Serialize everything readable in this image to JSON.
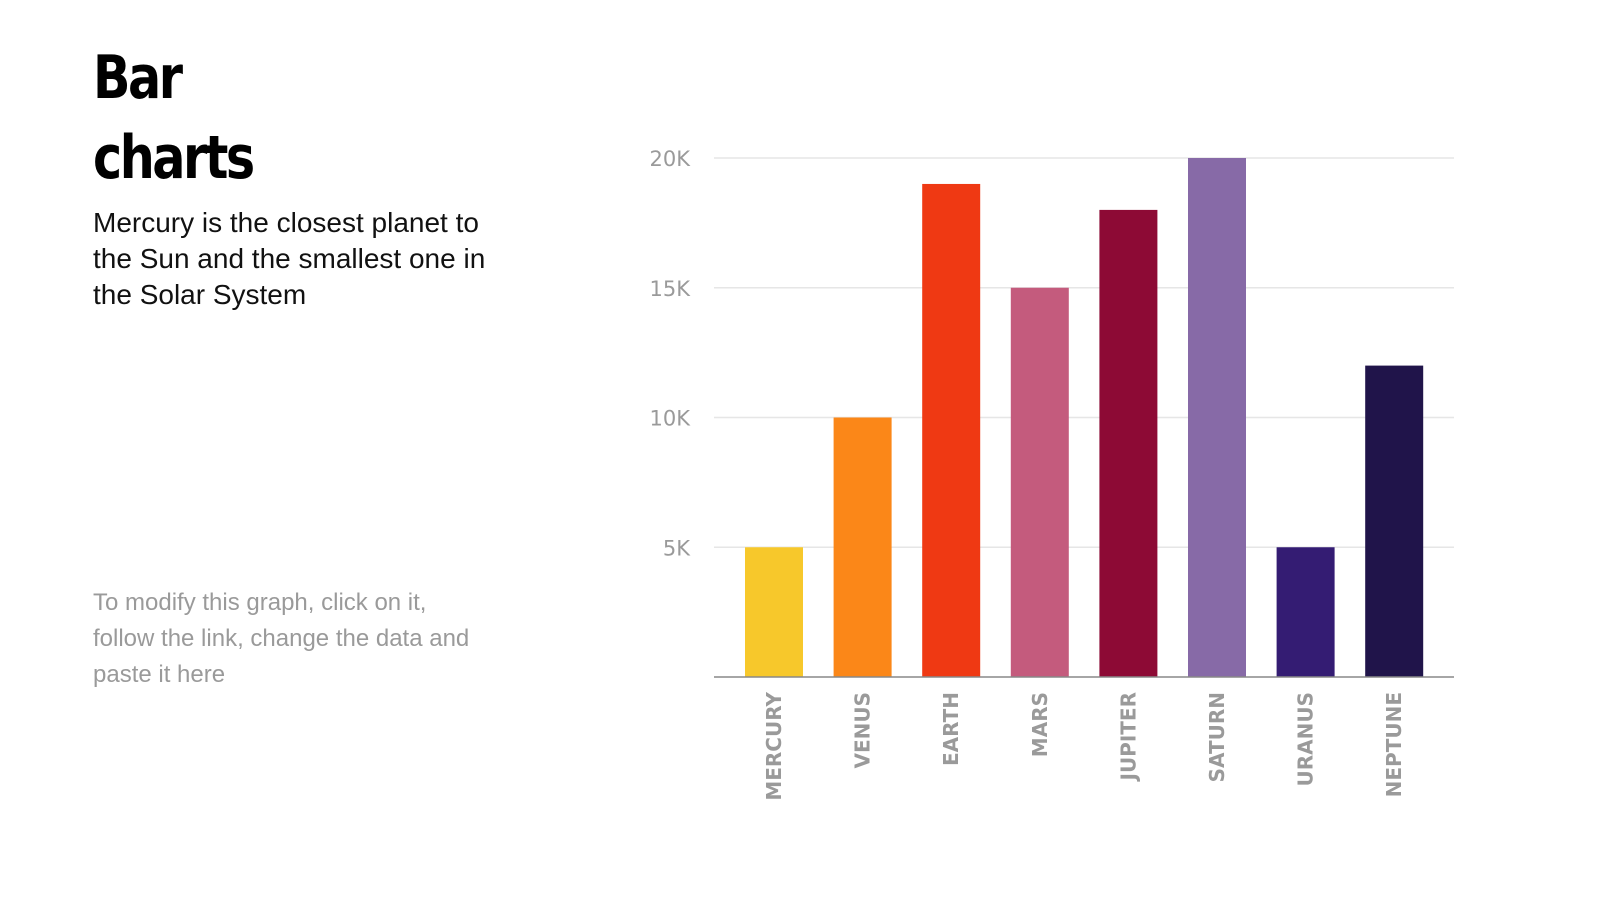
{
  "slide": {
    "title": "Bar charts",
    "subtitle": "Mercury is the closest planet to the Sun and the smallest one in the Solar System",
    "note": "To modify this graph, click on it, follow the link, change the data and paste it here"
  },
  "chart_data": {
    "type": "bar",
    "categories": [
      "MERCURY",
      "VENUS",
      "EARTH",
      "MARS",
      "JUPITER",
      "SATURN",
      "URANUS",
      "NEPTUNE"
    ],
    "values": [
      5000,
      10000,
      19000,
      15000,
      18000,
      20000,
      5000,
      12000
    ],
    "colors": [
      "#f7c82b",
      "#fb8718",
      "#ef3913",
      "#c45b7d",
      "#8d0a35",
      "#876aa7",
      "#341c73",
      "#20144a"
    ],
    "yticks": [
      5000,
      10000,
      15000,
      20000
    ],
    "ytick_labels": [
      "5K",
      "10K",
      "15K",
      "20K"
    ],
    "ylim": [
      0,
      20000
    ],
    "grid": true,
    "title": "",
    "xlabel": "",
    "ylabel": ""
  }
}
